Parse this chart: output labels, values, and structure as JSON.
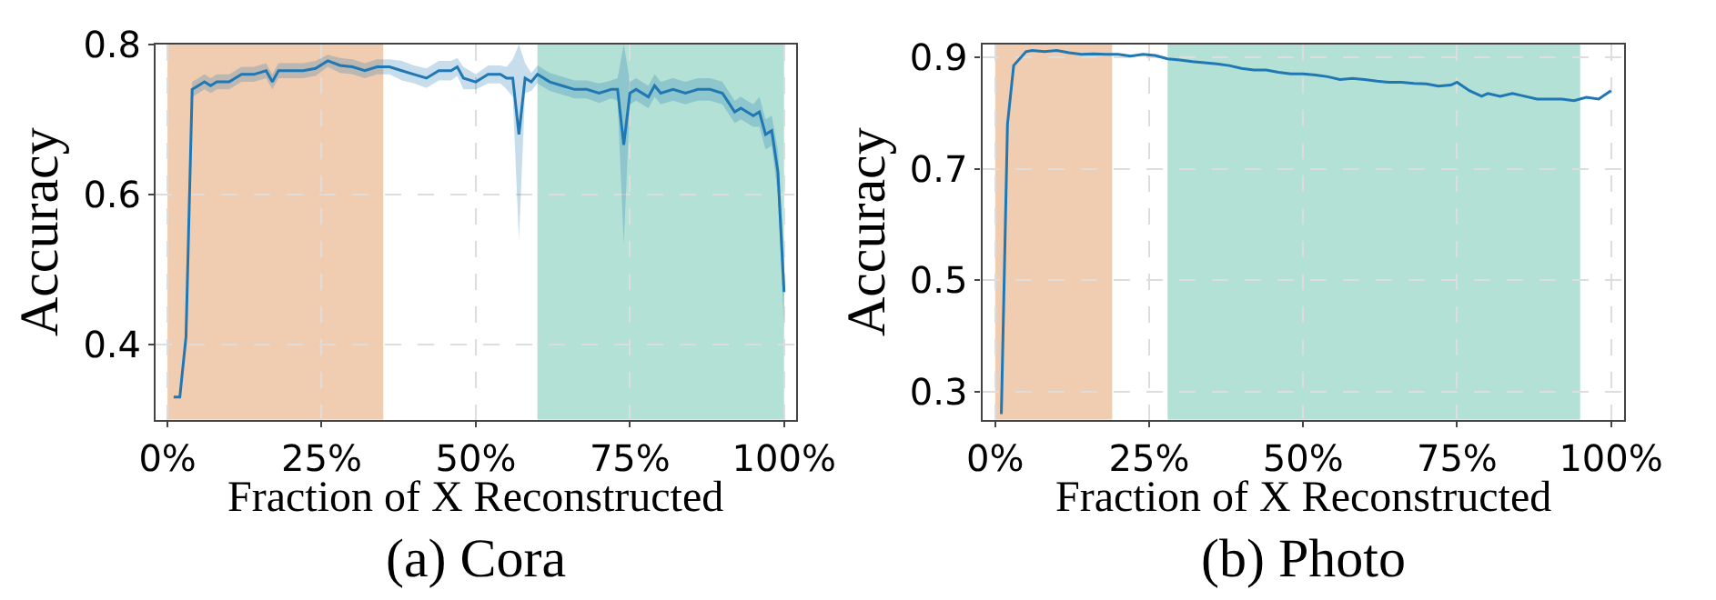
{
  "chart_data": [
    {
      "type": "line",
      "title": "(a) Cora",
      "xlabel": "Fraction of X Reconstructed",
      "ylabel": "Accuracy",
      "x": [
        1,
        2,
        3,
        4,
        5,
        6,
        7,
        8,
        10,
        12,
        14,
        16,
        17,
        18,
        20,
        22,
        24,
        26,
        28,
        30,
        32,
        34,
        36,
        38,
        40,
        42,
        44,
        46,
        47,
        48,
        50,
        52,
        54,
        55,
        56,
        57,
        58,
        59,
        60,
        62,
        64,
        66,
        68,
        70,
        72,
        73,
        74,
        75,
        76,
        78,
        79,
        80,
        82,
        84,
        86,
        88,
        90,
        92,
        93,
        95,
        96,
        97,
        98,
        99,
        100
      ],
      "series": [
        {
          "color": "#1f77b4",
          "values": [
            0.33,
            0.33,
            0.41,
            0.74,
            0.745,
            0.75,
            0.745,
            0.75,
            0.75,
            0.76,
            0.76,
            0.765,
            0.75,
            0.765,
            0.765,
            0.765,
            0.768,
            0.778,
            0.772,
            0.77,
            0.765,
            0.77,
            0.77,
            0.765,
            0.76,
            0.755,
            0.765,
            0.765,
            0.77,
            0.755,
            0.75,
            0.76,
            0.76,
            0.755,
            0.755,
            0.68,
            0.755,
            0.75,
            0.76,
            0.75,
            0.745,
            0.74,
            0.74,
            0.735,
            0.74,
            0.74,
            0.666,
            0.735,
            0.74,
            0.73,
            0.745,
            0.735,
            0.74,
            0.735,
            0.74,
            0.74,
            0.735,
            0.71,
            0.715,
            0.705,
            0.71,
            0.68,
            0.685,
            0.63,
            0.47
          ],
          "lower": [
            0.33,
            0.33,
            0.4,
            0.73,
            0.735,
            0.74,
            0.735,
            0.74,
            0.74,
            0.75,
            0.75,
            0.755,
            0.74,
            0.755,
            0.755,
            0.755,
            0.758,
            0.77,
            0.762,
            0.76,
            0.755,
            0.76,
            0.76,
            0.752,
            0.748,
            0.742,
            0.752,
            0.752,
            0.758,
            0.74,
            0.74,
            0.748,
            0.748,
            0.74,
            0.73,
            0.54,
            0.735,
            0.738,
            0.748,
            0.738,
            0.733,
            0.728,
            0.728,
            0.722,
            0.728,
            0.725,
            0.534,
            0.72,
            0.725,
            0.715,
            0.73,
            0.72,
            0.725,
            0.72,
            0.725,
            0.725,
            0.72,
            0.695,
            0.7,
            0.69,
            0.69,
            0.66,
            0.665,
            0.6,
            0.42
          ],
          "upper": [
            0.33,
            0.33,
            0.42,
            0.75,
            0.755,
            0.76,
            0.755,
            0.76,
            0.76,
            0.77,
            0.77,
            0.775,
            0.76,
            0.775,
            0.775,
            0.775,
            0.778,
            0.786,
            0.782,
            0.78,
            0.775,
            0.78,
            0.78,
            0.778,
            0.772,
            0.768,
            0.778,
            0.778,
            0.782,
            0.77,
            0.76,
            0.772,
            0.772,
            0.77,
            0.78,
            0.8,
            0.775,
            0.762,
            0.772,
            0.762,
            0.757,
            0.752,
            0.752,
            0.748,
            0.752,
            0.755,
            0.8,
            0.75,
            0.755,
            0.745,
            0.76,
            0.75,
            0.755,
            0.75,
            0.755,
            0.755,
            0.75,
            0.725,
            0.73,
            0.72,
            0.73,
            0.7,
            0.705,
            0.66,
            0.52
          ]
        }
      ],
      "xlim": [
        -1.9,
        102
      ],
      "xticks": [
        {
          "value": 0,
          "label": "0%"
        },
        {
          "value": 25,
          "label": "25%"
        },
        {
          "value": 50,
          "label": "50%"
        },
        {
          "value": 75,
          "label": "75%"
        },
        {
          "value": 100,
          "label": "100%"
        }
      ],
      "ylim": [
        0.3,
        0.8
      ],
      "yticks": [
        0.4,
        0.6,
        0.8
      ],
      "grid": true,
      "bands": [
        {
          "axis": "x",
          "from": 0,
          "to": 35,
          "color": "#f0cdb1"
        },
        {
          "axis": "x",
          "from": 60,
          "to": 100,
          "color": "#b3e1d6"
        }
      ]
    },
    {
      "type": "line",
      "title": "(b) Photo",
      "xlabel": "Fraction of X Reconstructed",
      "ylabel": "Accuracy",
      "x": [
        1,
        2,
        3,
        5,
        6,
        8,
        10,
        12,
        14,
        16,
        18,
        20,
        22,
        24,
        26,
        28,
        30,
        32,
        34,
        36,
        38,
        40,
        42,
        44,
        46,
        48,
        50,
        52,
        54,
        56,
        58,
        60,
        62,
        64,
        66,
        68,
        70,
        72,
        74,
        75,
        77,
        79,
        80,
        82,
        84,
        86,
        88,
        90,
        92,
        94,
        96,
        98,
        100
      ],
      "series": [
        {
          "color": "#1f77b4",
          "values": [
            0.26,
            0.78,
            0.885,
            0.91,
            0.912,
            0.91,
            0.912,
            0.908,
            0.905,
            0.906,
            0.905,
            0.905,
            0.902,
            0.905,
            0.903,
            0.897,
            0.895,
            0.892,
            0.89,
            0.888,
            0.885,
            0.88,
            0.877,
            0.877,
            0.873,
            0.87,
            0.87,
            0.868,
            0.865,
            0.86,
            0.862,
            0.86,
            0.857,
            0.855,
            0.855,
            0.853,
            0.852,
            0.848,
            0.85,
            0.855,
            0.84,
            0.83,
            0.835,
            0.83,
            0.835,
            0.83,
            0.825,
            0.825,
            0.825,
            0.822,
            0.828,
            0.825,
            0.84
          ]
        }
      ],
      "xlim": [
        -2.1,
        102.2
      ],
      "xticks": [
        {
          "value": 0,
          "label": "0%"
        },
        {
          "value": 25,
          "label": "25%"
        },
        {
          "value": 50,
          "label": "50%"
        },
        {
          "value": 75,
          "label": "75%"
        },
        {
          "value": 100,
          "label": "100%"
        }
      ],
      "ylim": [
        0.25,
        0.923
      ],
      "yticks": [
        0.3,
        0.5,
        0.7,
        0.9
      ],
      "grid": true,
      "bands": [
        {
          "axis": "x",
          "from": 0,
          "to": 19,
          "color": "#f0cdb1"
        },
        {
          "axis": "x",
          "from": 28,
          "to": 95,
          "color": "#b3e1d6"
        }
      ]
    }
  ]
}
